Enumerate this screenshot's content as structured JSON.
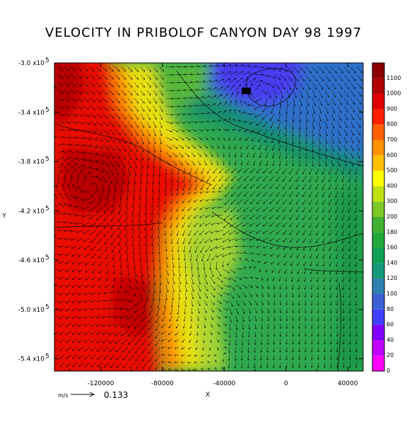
{
  "chart_data": {
    "type": "heatmap",
    "overlay": "vector field with contour lines",
    "title": "VELOCITY IN PRIBOLOF CANYON DAY 98 1997",
    "xlabel": "X",
    "ylabel": "Y",
    "xlim": [
      -150000,
      50000
    ],
    "ylim": [
      -550000.0,
      -300000.0
    ],
    "x_ticks": [
      -120000,
      -80000,
      -40000,
      0,
      40000
    ],
    "x_tick_labels": [
      "-120000",
      "-80000",
      "-40000",
      "0",
      "40000"
    ],
    "y_ticks": [
      -300000.0,
      -340000.0,
      -380000.0,
      -420000.0,
      -460000.0,
      -500000.0,
      -540000.0
    ],
    "y_tick_mantissa": [
      "-3.0",
      "-3.4",
      "-3.8",
      "-4.2",
      "-4.6",
      "-5.0",
      "-5.4"
    ],
    "y_tick_exponent": "5",
    "colorbar": {
      "levels": [
        0,
        20,
        40,
        60,
        80,
        100,
        120,
        140,
        160,
        180,
        200,
        300,
        400,
        500,
        600,
        700,
        800,
        900,
        1000,
        1100
      ],
      "labels": [
        "0",
        "20",
        "40",
        "60",
        "80",
        "100",
        "120",
        "140",
        "160",
        "180",
        "200",
        "300",
        "400",
        "500",
        "600",
        "700",
        "800",
        "900",
        "1000",
        "1100"
      ],
      "colors": [
        "#ff00ff",
        "#c000ff",
        "#8000ff",
        "#4040ff",
        "#3d5fd6",
        "#2d7fb0",
        "#149a7a",
        "#10a058",
        "#20a838",
        "#40b030",
        "#80c828",
        "#c0e010",
        "#ffff00",
        "#ffc000",
        "#ff9000",
        "#ff6000",
        "#ff2000",
        "#e00000",
        "#b00000",
        "#8a0000"
      ]
    },
    "reference_vector": {
      "unit_label": "m/s",
      "value": "0.133"
    }
  }
}
